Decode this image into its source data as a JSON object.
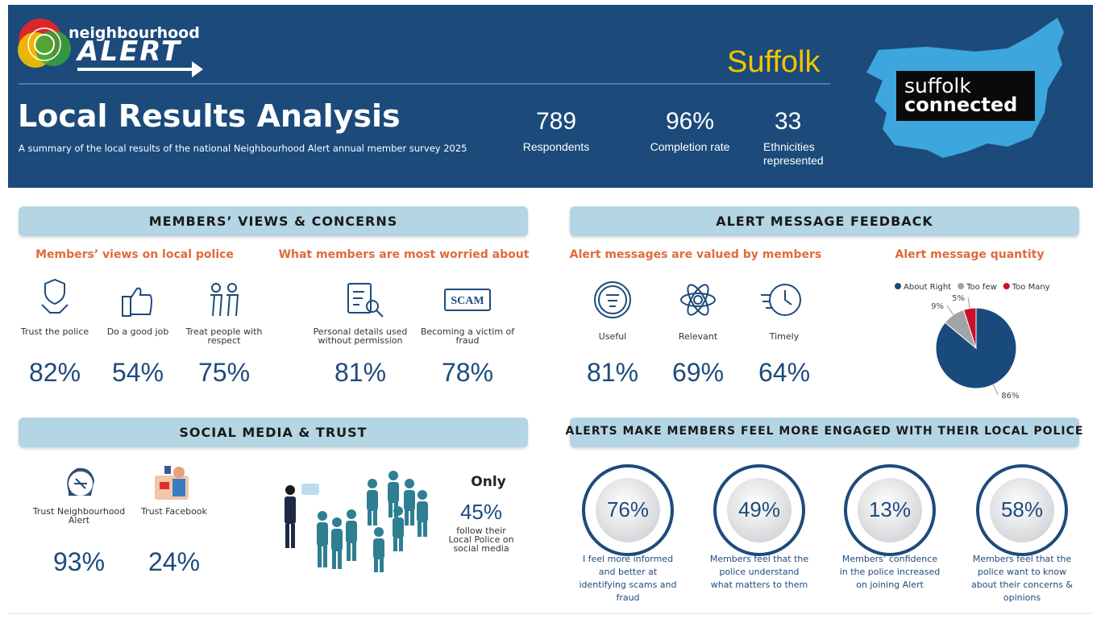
{
  "header": {
    "logo_top": "neighbourhood",
    "logo_main": "ALERT",
    "region": "Suffolk",
    "title": "Local Results Analysis",
    "subtitle": "A summary of the local results of the national Neighbourhood Alert annual member survey 2025",
    "stats": [
      {
        "value": "789",
        "label": "Respondents"
      },
      {
        "value": "96%",
        "label": "Completion rate"
      },
      {
        "value": "33",
        "label": "Ethnicities represented"
      }
    ],
    "partner_top": "suffolk",
    "partner_bottom": "connected"
  },
  "views": {
    "heading": "MEMBERS’ VIEWS & CONCERNS",
    "police_title": "Members’ views on local police",
    "police": [
      {
        "label": "Trust the police",
        "value": "82%"
      },
      {
        "label": "Do a good job",
        "value": "54%"
      },
      {
        "label": "Treat people with respect",
        "value": "75%"
      }
    ],
    "worries_title": "What members are most worried about",
    "worries": [
      {
        "label": "Personal details used without permission",
        "value": "81%"
      },
      {
        "label": "Becoming a victim of fraud",
        "value": "78%"
      }
    ]
  },
  "feedback": {
    "heading": "ALERT MESSAGE FEEDBACK",
    "valued_title": "Alert messages are valued by members",
    "valued": [
      {
        "label": "Useful",
        "value": "81%"
      },
      {
        "label": "Relevant",
        "value": "69%"
      },
      {
        "label": "Timely",
        "value": "64%"
      }
    ],
    "quantity_title": "Alert message quantity",
    "chart": {
      "type": "pie",
      "categories": [
        "About Right",
        "Too few",
        "Too Many"
      ],
      "values": [
        86,
        9,
        5
      ],
      "value_labels": [
        "86%",
        "9%",
        "5%"
      ],
      "colors": [
        "#184b7c",
        "#a0a3a8",
        "#c8102e"
      ],
      "legend": "top"
    }
  },
  "social": {
    "heading": "SOCIAL MEDIA & TRUST",
    "items": [
      {
        "label": "Trust Neighbourhood Alert",
        "value": "93%"
      },
      {
        "label": "Trust Facebook",
        "value": "24%"
      }
    ],
    "callout_lead": "Only",
    "callout_value": "45%",
    "callout_text": "follow their Local Police on social media"
  },
  "engaged": {
    "heading": "ALERTS MAKE MEMBERS FEEL MORE ENGAGED WITH THEIR LOCAL POLICE",
    "items": [
      {
        "value": "76%",
        "text": "I feel more informed and better at identifying scams and fraud"
      },
      {
        "value": "49%",
        "text": "Members feel that the police understand what matters to them"
      },
      {
        "value": "13%",
        "text": "Members’ confidence in the police increased on joining Alert"
      },
      {
        "value": "58%",
        "text": "Members feel that the police want to know about their concerns & opinions"
      }
    ]
  }
}
